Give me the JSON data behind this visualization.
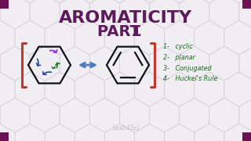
{
  "bg_color": "#f0eef2",
  "title_line1": "AROMATICITY",
  "title_line2": "PART ",
  "title_number": "1",
  "title_color": "#5c1a5a",
  "list_items": [
    "1-   cyclic",
    "2-   planar",
    "3-   Conjugated",
    "4-   Huckel's Rule"
  ],
  "list_color": "#1a6b1a",
  "corner_color": "#6b1055",
  "bracket_color": "#c0392b",
  "arrow_color": "#4a7abf",
  "hex_line_color": "#ccc8d0",
  "watermark": "Leah4Sci",
  "watermark_color": "#b8b0b8",
  "hex_lw": 0.7,
  "hex_alpha": 0.5
}
